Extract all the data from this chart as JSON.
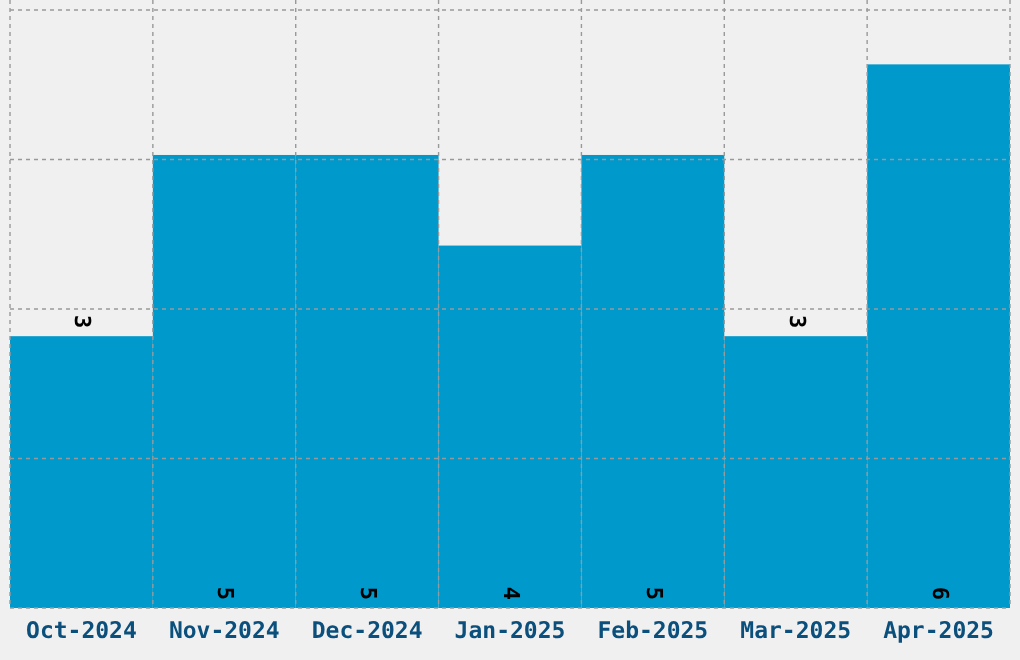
{
  "chart_data": {
    "type": "bar",
    "categories": [
      "Oct-2024",
      "Nov-2024",
      "Dec-2024",
      "Jan-2025",
      "Feb-2025",
      "Mar-2025",
      "Apr-2025"
    ],
    "values": [
      3,
      5,
      5,
      4,
      5,
      3,
      6
    ],
    "color": "#0099cc",
    "data_labels": true,
    "ylim": [
      0,
      6.6
    ],
    "yticks": [
      {
        "value": 0,
        "label": null
      },
      {
        "value": 1.65,
        "label": null
      },
      {
        "value": 3.3,
        "label": null
      },
      {
        "value": 4.95,
        "label": null
      },
      {
        "value": 6.6,
        "label": null
      }
    ],
    "grid": true,
    "tick_labels": "x"
  }
}
